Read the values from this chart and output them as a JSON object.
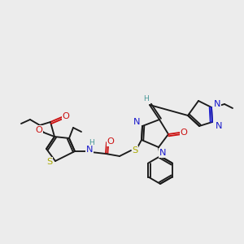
{
  "bg": "#ececec",
  "C": "#1a1a1a",
  "N": "#1a1acc",
  "O": "#cc1111",
  "S": "#aaaa00",
  "H": "#4a9999",
  "lw": 1.35,
  "fs": 7.2
}
